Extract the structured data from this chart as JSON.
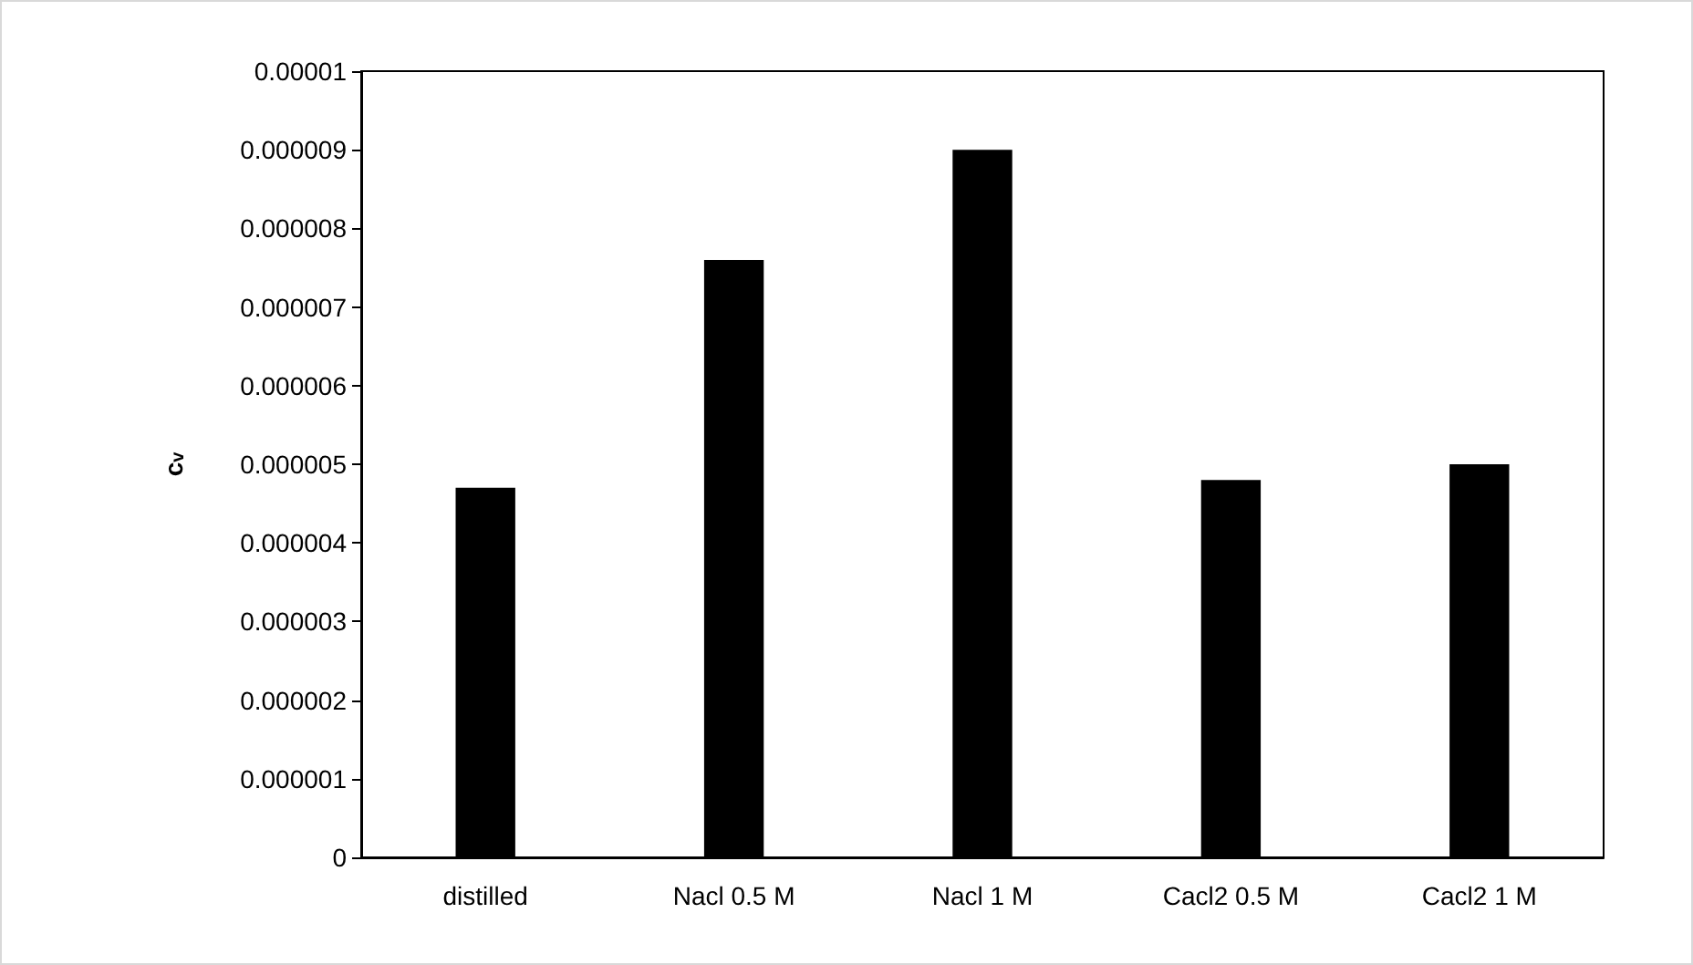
{
  "chart_data": {
    "type": "bar",
    "ylabel": "c$_{v}$",
    "categories": [
      "distilled",
      "Nacl 0.5 M",
      "Nacl 1 M",
      "Cacl2 0.5 M",
      "Cacl2 1 M"
    ],
    "values": [
      4.7e-06,
      7.6e-06,
      9e-06,
      4.8e-06,
      5e-06
    ],
    "color": "#000000",
    "ylim": [
      0,
      1e-05
    ],
    "yticks": [
      {
        "value": 0,
        "label": "0"
      },
      {
        "value": 1e-06,
        "label": "0.000001"
      },
      {
        "value": 2e-06,
        "label": "0.000002"
      },
      {
        "value": 3e-06,
        "label": "0.000003"
      },
      {
        "value": 4e-06,
        "label": "0.000004"
      },
      {
        "value": 5e-06,
        "label": "0.000005"
      },
      {
        "value": 6e-06,
        "label": "0.000006"
      },
      {
        "value": 7e-06,
        "label": "0.000007"
      },
      {
        "value": 8e-06,
        "label": "0.000008"
      },
      {
        "value": 9e-06,
        "label": "0.000009"
      },
      {
        "value": 1e-05,
        "label": "0.00001"
      }
    ],
    "grid": false
  }
}
